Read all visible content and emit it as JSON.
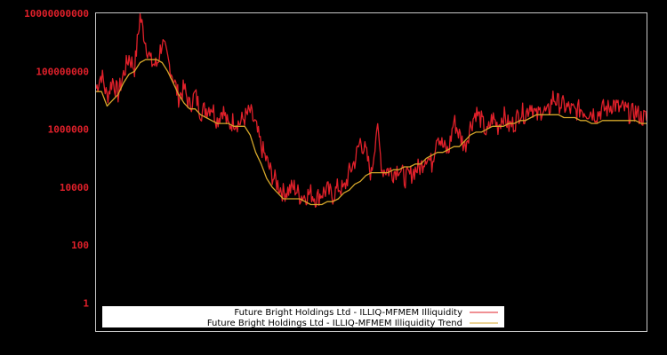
{
  "chart_data": {
    "type": "line",
    "title": "",
    "xlabel": "",
    "ylabel": "",
    "yscale": "log",
    "ylim": [
      1,
      10000000000
    ],
    "y_ticks": [
      {
        "label": "10000000000",
        "value": 10000000000
      },
      {
        "label": "100000000",
        "value": 100000000
      },
      {
        "label": "1000000",
        "value": 1000000
      },
      {
        "label": "10000",
        "value": 10000
      },
      {
        "label": "100",
        "value": 100
      },
      {
        "label": "1",
        "value": 1
      }
    ],
    "grid": false,
    "legend_position": "lower-left",
    "x_note": "x values are relative positions (0-100) across the unlabeled time axis",
    "x": [
      0,
      1,
      2,
      3,
      4,
      5,
      6,
      7,
      8,
      9,
      10,
      11,
      12,
      13,
      14,
      15,
      16,
      17,
      18,
      19,
      20,
      21,
      22,
      23,
      24,
      25,
      26,
      27,
      28,
      29,
      30,
      31,
      32,
      33,
      34,
      35,
      36,
      37,
      38,
      39,
      40,
      41,
      42,
      43,
      44,
      45,
      46,
      47,
      48,
      49,
      50,
      51,
      52,
      53,
      54,
      55,
      56,
      57,
      58,
      59,
      60,
      61,
      62,
      63,
      64,
      65,
      66,
      67,
      68,
      69,
      70,
      71,
      72,
      73,
      74,
      75,
      76,
      77,
      78,
      79,
      80,
      81,
      82,
      83,
      84,
      85,
      86,
      87,
      88,
      89,
      90,
      91,
      92,
      93,
      94,
      95,
      96,
      97,
      98,
      99,
      100
    ],
    "series": [
      {
        "name": "Future Bright Holdings Ltd - ILLIQ-MFMEM Illiquidity",
        "color": "#e0202a",
        "log10_values": [
          7.3,
          7.8,
          7.0,
          7.6,
          7.1,
          7.8,
          8.4,
          8.0,
          9.8,
          8.9,
          8.2,
          8.1,
          8.9,
          8.3,
          7.7,
          7.0,
          7.3,
          6.7,
          7.1,
          6.5,
          6.6,
          6.7,
          6.2,
          6.6,
          6.0,
          6.2,
          6.1,
          6.3,
          6.5,
          6.0,
          5.3,
          4.8,
          4.3,
          4.0,
          3.7,
          3.8,
          3.9,
          3.6,
          3.6,
          3.7,
          3.5,
          3.7,
          3.8,
          3.6,
          3.9,
          3.8,
          4.4,
          4.8,
          5.5,
          5.1,
          4.3,
          6.0,
          4.5,
          4.5,
          4.4,
          4.6,
          4.2,
          4.3,
          4.5,
          4.6,
          5.0,
          4.7,
          5.8,
          5.3,
          5.1,
          6.2,
          5.7,
          5.3,
          6.0,
          6.5,
          6.2,
          5.7,
          6.3,
          6.0,
          6.4,
          6.0,
          6.1,
          6.5,
          6.4,
          6.8,
          6.3,
          6.6,
          6.4,
          7.0,
          6.8,
          6.7,
          6.6,
          6.5,
          6.6,
          6.5,
          6.5,
          6.4,
          6.6,
          6.6,
          6.8,
          6.6,
          6.6,
          6.4,
          6.5,
          6.3,
          6.3
        ],
        "notes": "spiky daily illiquidity; peak ~5e9 near x=6, secondary peak near x=70 (~3e7)"
      },
      {
        "name": "Future Bright Holdings Ltd - ILLIQ-MFMEM Illiquidity Trend",
        "color": "#d4a62a",
        "log10_values": [
          7.3,
          7.3,
          6.8,
          7.0,
          7.2,
          7.6,
          7.9,
          8.0,
          8.3,
          8.4,
          8.4,
          8.4,
          8.3,
          8.0,
          7.6,
          7.2,
          6.9,
          6.7,
          6.7,
          6.5,
          6.4,
          6.3,
          6.2,
          6.2,
          6.2,
          6.1,
          6.1,
          6.1,
          5.8,
          5.2,
          4.8,
          4.3,
          4.0,
          3.8,
          3.6,
          3.6,
          3.6,
          3.6,
          3.5,
          3.4,
          3.4,
          3.4,
          3.5,
          3.5,
          3.6,
          3.8,
          3.9,
          4.1,
          4.2,
          4.4,
          4.5,
          4.5,
          4.5,
          4.5,
          4.6,
          4.6,
          4.7,
          4.7,
          4.8,
          4.8,
          5.0,
          5.1,
          5.2,
          5.2,
          5.3,
          5.4,
          5.4,
          5.6,
          5.8,
          5.9,
          5.9,
          6.0,
          6.1,
          6.1,
          6.1,
          6.2,
          6.2,
          6.3,
          6.3,
          6.4,
          6.5,
          6.5,
          6.5,
          6.5,
          6.5,
          6.4,
          6.4,
          6.4,
          6.3,
          6.3,
          6.2,
          6.2,
          6.3,
          6.3,
          6.3,
          6.3,
          6.3,
          6.3,
          6.3,
          6.2,
          6.2
        ]
      }
    ]
  },
  "legend": {
    "items": [
      {
        "label": "Future Bright Holdings Ltd - ILLIQ-MFMEM Illiquidity",
        "color": "#e0202a"
      },
      {
        "label": "Future Bright Holdings Ltd - ILLIQ-MFMEM Illiquidity Trend",
        "color": "#d4a62a"
      }
    ]
  }
}
